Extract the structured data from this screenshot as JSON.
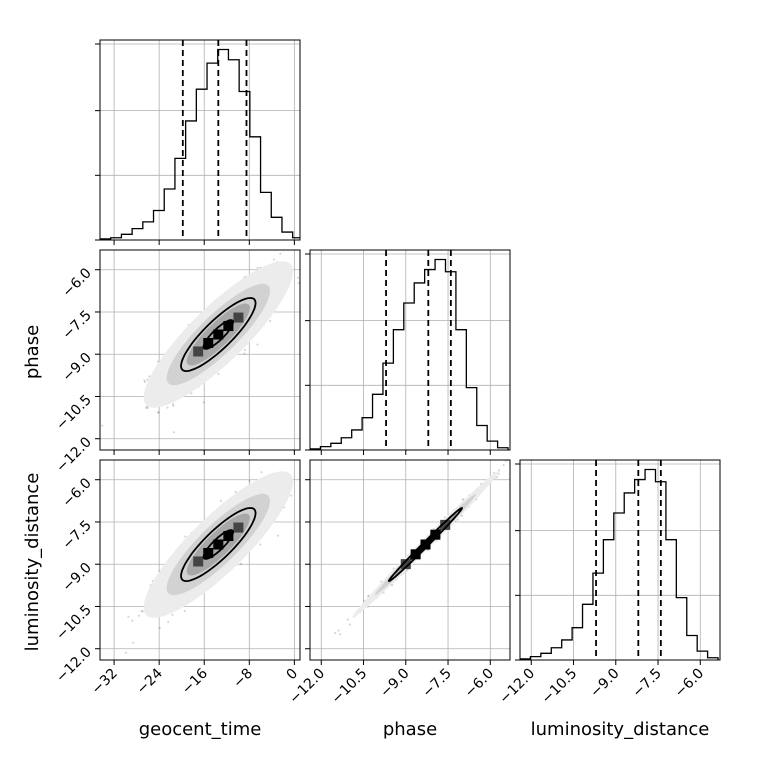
{
  "chart_data": {
    "type": "corner",
    "parameters": [
      "geocent_time",
      "phase",
      "luminosity_distance"
    ],
    "axis_labels": {
      "geocent_time": "geocent_time",
      "phase": "phase",
      "luminosity_distance": "luminosity_distance"
    },
    "ranges": {
      "geocent_time": [
        -34.5,
        1.0
      ],
      "phase": [
        -12.4,
        -5.3
      ],
      "luminosity_distance": [
        -12.4,
        -5.3
      ]
    },
    "ticks": {
      "geocent_time": [
        -32,
        -24,
        -16,
        -8,
        0
      ],
      "phase": [
        -12.0,
        -10.5,
        -9.0,
        -7.5,
        -6.0
      ],
      "luminosity_distance": [
        -12.0,
        -10.5,
        -9.0,
        -7.5,
        -6.0
      ]
    },
    "tick_labels": {
      "geocent_time": [
        "−32",
        "−24",
        "−16",
        "−8",
        "0"
      ],
      "phase": [
        "−12.0",
        "−10.5",
        "−9.0",
        "−7.5",
        "−6.0"
      ],
      "luminosity_distance": [
        "−12.0",
        "−10.5",
        "−9.0",
        "−7.5",
        "−6.0"
      ]
    },
    "quantiles": {
      "geocent_time": [
        -19.8,
        -13.5,
        -8.5
      ],
      "phase": [
        -9.7,
        -8.2,
        -7.4
      ],
      "luminosity_distance": [
        -9.7,
        -8.2,
        -7.4
      ]
    },
    "histograms": {
      "geocent_time": {
        "bin_edges": [
          -34.5,
          -32.6,
          -30.7,
          -28.8,
          -26.9,
          -25.0,
          -23.1,
          -21.2,
          -19.3,
          -17.4,
          -15.5,
          -13.6,
          -11.7,
          -9.8,
          -7.9,
          -6.0,
          -4.1,
          -2.2,
          -0.3,
          1.6
        ],
        "counts": [
          1,
          2,
          5,
          10,
          16,
          26,
          45,
          72,
          105,
          133,
          156,
          168,
          159,
          131,
          91,
          42,
          20,
          7,
          2
        ]
      },
      "phase": {
        "bin_edges": [
          -12.4,
          -12.03,
          -11.66,
          -11.29,
          -10.92,
          -10.55,
          -10.18,
          -9.81,
          -9.44,
          -9.07,
          -8.7,
          -8.33,
          -7.96,
          -7.59,
          -7.22,
          -6.85,
          -6.48,
          -6.11,
          -5.74,
          -5.37
        ],
        "counts": [
          1,
          3,
          6,
          11,
          18,
          29,
          50,
          78,
          108,
          132,
          150,
          162,
          171,
          160,
          108,
          56,
          22,
          8,
          2
        ]
      },
      "luminosity_distance": {
        "bin_edges": [
          -12.4,
          -12.03,
          -11.66,
          -11.29,
          -10.92,
          -10.55,
          -10.18,
          -9.81,
          -9.44,
          -9.07,
          -8.7,
          -8.33,
          -7.96,
          -7.59,
          -7.22,
          -6.85,
          -6.48,
          -6.11,
          -5.74,
          -5.37
        ],
        "counts": [
          1,
          3,
          6,
          11,
          18,
          29,
          50,
          78,
          108,
          132,
          150,
          162,
          171,
          160,
          108,
          56,
          22,
          8,
          2
        ]
      }
    },
    "joint_distributions": [
      {
        "x": "geocent_time",
        "y": "phase",
        "mean": [
          -13.5,
          -8.3
        ],
        "std": [
          5.1,
          1.0
        ],
        "correlation": 0.86
      },
      {
        "x": "geocent_time",
        "y": "luminosity_distance",
        "mean": [
          -13.5,
          -8.3
        ],
        "std": [
          5.1,
          1.0
        ],
        "correlation": 0.86
      },
      {
        "x": "phase",
        "y": "luminosity_distance",
        "mean": [
          -8.3,
          -8.3
        ],
        "std": [
          1.0,
          1.0
        ],
        "correlation": 0.995
      }
    ],
    "contour_levels_sigma": [
      1,
      2,
      3
    ],
    "grid": true
  }
}
